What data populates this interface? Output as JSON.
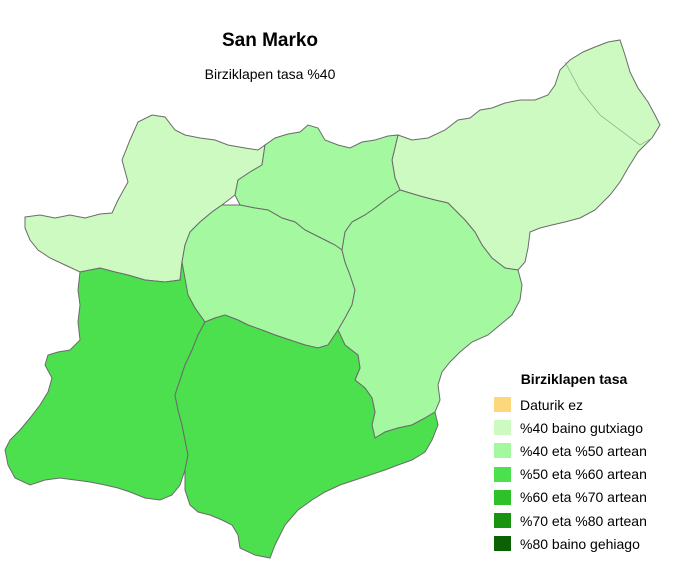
{
  "title": "San Marko",
  "subtitle": "Birziklapen tasa %40",
  "legend": {
    "title": "Birziklapen tasa",
    "items": [
      {
        "label": "Daturik ez",
        "color": "#fcd77c"
      },
      {
        "label": "%40 baino gutxiago",
        "color": "#ccfac0"
      },
      {
        "label": "%40 eta %50 artean",
        "color": "#a4f8a0"
      },
      {
        "label": "%50 eta %60 artean",
        "color": "#4de04e"
      },
      {
        "label": "%60 eta %70 artean",
        "color": "#2fc12a"
      },
      {
        "label": "%70 eta %80 artean",
        "color": "#1a9410"
      },
      {
        "label": "%80 baino gehiago",
        "color": "#0c6104"
      }
    ]
  },
  "map": {
    "border_color": "#6b6b6b",
    "regions": [
      {
        "name": "west-north",
        "category": "%40 baino gutxiago",
        "color": "#ccfac0"
      },
      {
        "name": "north-east",
        "category": "%40 baino gutxiago",
        "color": "#ccfac0"
      },
      {
        "name": "north-central",
        "category": "%40 eta %50 artean",
        "color": "#a4f8a0"
      },
      {
        "name": "central-west",
        "category": "%40 eta %50 artean",
        "color": "#a4f8a0"
      },
      {
        "name": "central-east",
        "category": "%40 eta %50 artean",
        "color": "#a4f8a0"
      },
      {
        "name": "south-west",
        "category": "%50 eta %60 artean",
        "color": "#4de04e"
      },
      {
        "name": "south-central",
        "category": "%50 eta %60 artean",
        "color": "#4de04e"
      }
    ]
  }
}
